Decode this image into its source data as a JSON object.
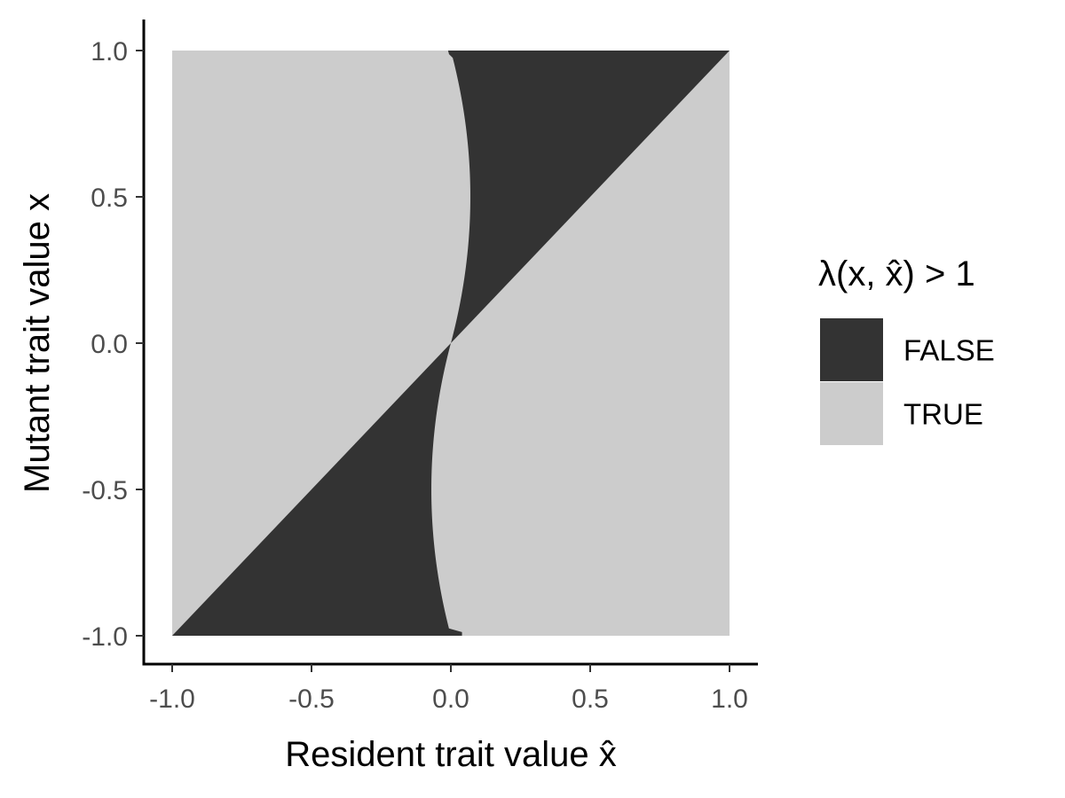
{
  "chart_data": {
    "type": "heatmap",
    "title": "",
    "xlabel": "Resident trait value x̂",
    "ylabel": "Mutant trait value x",
    "xlim": [
      -1.0,
      1.0
    ],
    "ylim": [
      -1.0,
      1.0
    ],
    "x_ticks": [
      "-1.0",
      "-0.5",
      "0.0",
      "0.5",
      "1.0"
    ],
    "y_ticks": [
      "-1.0",
      "-0.5",
      "0.0",
      "0.5",
      "1.0"
    ],
    "grid": false,
    "legend": {
      "title": "λ(x, x̂) > 1",
      "position": "right",
      "entries": [
        {
          "label": "FALSE",
          "color": "#333333"
        },
        {
          "label": "TRUE",
          "color": "#cccccc"
        }
      ]
    },
    "regions": [
      {
        "value": "FALSE",
        "description_points_x_y": [
          [
            -0.01,
            1.0
          ],
          [
            1.0,
            1.0
          ],
          [
            0.0,
            0.0
          ],
          [
            0.07,
            0.5
          ]
        ],
        "boundary": "region between line y = x and curve x = 0.07(1 - (y - 0.5)^2 / 0.25) for y >= 0"
      },
      {
        "value": "FALSE",
        "description_points_x_y": [
          [
            -1.0,
            -1.0
          ],
          [
            0.04,
            -1.0
          ],
          [
            0.0,
            0.0
          ],
          [
            -0.07,
            -0.5
          ]
        ],
        "boundary": "region between line y = x and curve x = -0.07(1 - (y + 0.5)^2 / 0.25) for y <= 0"
      }
    ],
    "background_value": "TRUE",
    "colors": {
      "FALSE": "#333333",
      "TRUE": "#cccccc"
    }
  }
}
